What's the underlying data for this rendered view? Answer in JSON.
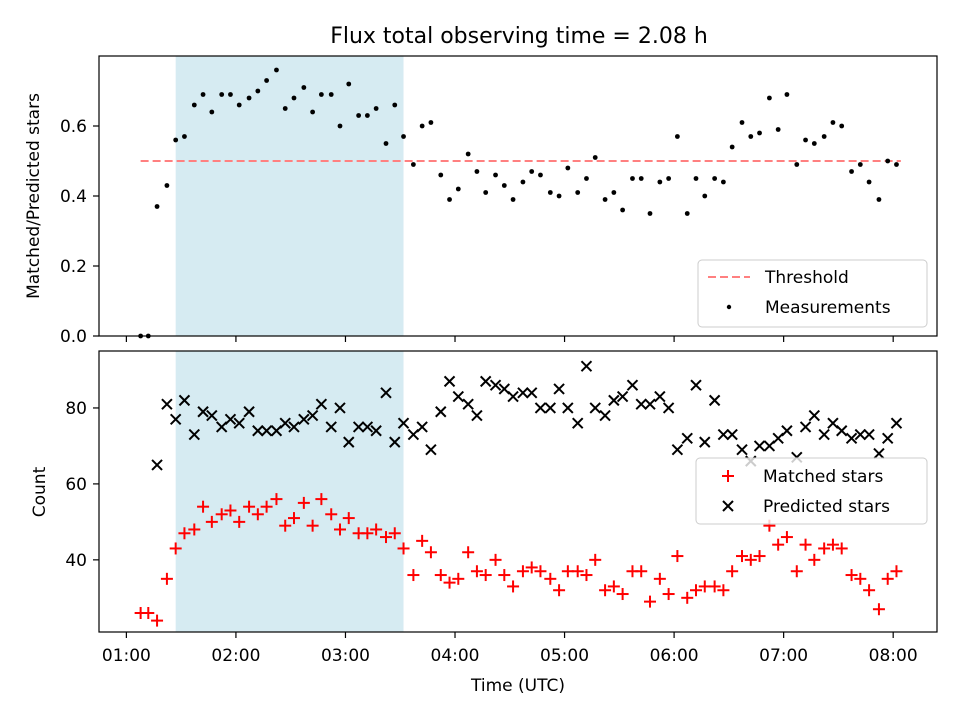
{
  "figure": {
    "title": "Flux total observing time = 2.08 h",
    "xlabel": "Time (UTC)",
    "x_ticks": [
      "01:00",
      "02:00",
      "03:00",
      "04:00",
      "05:00",
      "06:00",
      "07:00",
      "08:00"
    ],
    "colors": {
      "shade": "#add8e6",
      "threshold": "#ff8080",
      "measure": "#000000",
      "matched": "#ff0000",
      "predicted": "#000000"
    }
  },
  "chart_data": [
    {
      "type": "scatter",
      "ylabel": "Matched/Predicted stars",
      "xlim_hours": [
        0.75,
        8.4
      ],
      "ylim": [
        0,
        0.8
      ],
      "y_ticks": [
        "0.0",
        "0.2",
        "0.4",
        "0.6"
      ],
      "shaded_span_hours": [
        1.45,
        3.53
      ],
      "threshold": {
        "label": "Threshold",
        "value": 0.5,
        "x_range_hours": [
          1.13,
          8.07
        ]
      },
      "legend_labels": [
        "Threshold",
        "Measurements"
      ],
      "legend_position": "lower right",
      "series": [
        {
          "name": "Measurements",
          "x": [
            1.13,
            1.2,
            1.28,
            1.37,
            1.45,
            1.53,
            1.62,
            1.7,
            1.78,
            1.87,
            1.95,
            2.03,
            2.12,
            2.2,
            2.28,
            2.37,
            2.45,
            2.53,
            2.62,
            2.7,
            2.78,
            2.87,
            2.95,
            3.03,
            3.12,
            3.2,
            3.28,
            3.37,
            3.45,
            3.53,
            3.62,
            3.7,
            3.78,
            3.87,
            3.95,
            4.03,
            4.12,
            4.2,
            4.28,
            4.37,
            4.45,
            4.53,
            4.62,
            4.7,
            4.78,
            4.87,
            4.95,
            5.03,
            5.12,
            5.2,
            5.28,
            5.37,
            5.45,
            5.53,
            5.62,
            5.7,
            5.78,
            5.87,
            5.95,
            6.03,
            6.12,
            6.2,
            6.28,
            6.37,
            6.45,
            6.53,
            6.62,
            6.7,
            6.78,
            6.87,
            6.95,
            7.03,
            7.12,
            7.2,
            7.28,
            7.37,
            7.45,
            7.53,
            7.62,
            7.7,
            7.78,
            7.87,
            7.95,
            8.03
          ],
          "y": [
            0.0,
            0.0,
            0.37,
            0.43,
            0.56,
            0.57,
            0.66,
            0.69,
            0.64,
            0.69,
            0.69,
            0.66,
            0.68,
            0.7,
            0.73,
            0.76,
            0.65,
            0.68,
            0.71,
            0.64,
            0.69,
            0.69,
            0.6,
            0.72,
            0.63,
            0.63,
            0.65,
            0.55,
            0.66,
            0.57,
            0.49,
            0.6,
            0.61,
            0.46,
            0.39,
            0.42,
            0.52,
            0.47,
            0.41,
            0.46,
            0.43,
            0.39,
            0.44,
            0.47,
            0.46,
            0.41,
            0.4,
            0.48,
            0.41,
            0.45,
            0.51,
            0.39,
            0.41,
            0.36,
            0.45,
            0.45,
            0.35,
            0.44,
            0.45,
            0.57,
            0.35,
            0.45,
            0.4,
            0.45,
            0.44,
            0.54,
            0.61,
            0.57,
            0.58,
            0.68,
            0.59,
            0.69,
            0.49,
            0.56,
            0.55,
            0.57,
            0.61,
            0.6,
            0.47,
            0.49,
            0.44,
            0.39,
            0.5,
            0.49
          ]
        }
      ]
    },
    {
      "type": "scatter",
      "ylabel": "Count",
      "xlim_hours": [
        0.75,
        8.4
      ],
      "ylim": [
        21,
        95
      ],
      "y_ticks": [
        "40",
        "60",
        "80"
      ],
      "shaded_span_hours": [
        1.45,
        3.53
      ],
      "legend_labels": [
        "Matched stars",
        "Predicted stars"
      ],
      "legend_position": "center right",
      "series": [
        {
          "name": "Matched stars",
          "marker": "plus",
          "x": [
            1.13,
            1.2,
            1.28,
            1.37,
            1.45,
            1.53,
            1.62,
            1.7,
            1.78,
            1.87,
            1.95,
            2.03,
            2.12,
            2.2,
            2.28,
            2.37,
            2.45,
            2.53,
            2.62,
            2.7,
            2.78,
            2.87,
            2.95,
            3.03,
            3.12,
            3.2,
            3.28,
            3.37,
            3.45,
            3.53,
            3.62,
            3.7,
            3.78,
            3.87,
            3.95,
            4.03,
            4.12,
            4.2,
            4.28,
            4.37,
            4.45,
            4.53,
            4.62,
            4.7,
            4.78,
            4.87,
            4.95,
            5.03,
            5.12,
            5.2,
            5.28,
            5.37,
            5.45,
            5.53,
            5.62,
            5.7,
            5.78,
            5.87,
            5.95,
            6.03,
            6.12,
            6.2,
            6.28,
            6.37,
            6.45,
            6.53,
            6.62,
            6.7,
            6.78,
            6.87,
            6.95,
            7.03,
            7.12,
            7.2,
            7.28,
            7.37,
            7.45,
            7.53,
            7.62,
            7.7,
            7.78,
            7.87,
            7.95,
            8.03
          ],
          "y": [
            26,
            26,
            24,
            35,
            43,
            47,
            48,
            54,
            50,
            52,
            53,
            50,
            54,
            52,
            54,
            56,
            49,
            51,
            55,
            49,
            56,
            52,
            48,
            51,
            47,
            47,
            48,
            46,
            47,
            43,
            36,
            45,
            42,
            36,
            34,
            35,
            42,
            37,
            36,
            40,
            36,
            33,
            37,
            38,
            37,
            35,
            32,
            37,
            37,
            36,
            40,
            32,
            33,
            31,
            37,
            37,
            29,
            35,
            31,
            41,
            30,
            32,
            33,
            33,
            32,
            37,
            41,
            40,
            41,
            49,
            44,
            46,
            37,
            44,
            40,
            43,
            44,
            43,
            36,
            35,
            32,
            27,
            35,
            37
          ]
        },
        {
          "name": "Predicted stars",
          "marker": "x",
          "x": [
            1.13,
            1.2,
            1.28,
            1.37,
            1.45,
            1.53,
            1.62,
            1.7,
            1.78,
            1.87,
            1.95,
            2.03,
            2.12,
            2.2,
            2.28,
            2.37,
            2.45,
            2.53,
            2.62,
            2.7,
            2.78,
            2.87,
            2.95,
            3.03,
            3.12,
            3.2,
            3.28,
            3.37,
            3.45,
            3.53,
            3.62,
            3.7,
            3.78,
            3.87,
            3.95,
            4.03,
            4.12,
            4.2,
            4.28,
            4.37,
            4.45,
            4.53,
            4.62,
            4.7,
            4.78,
            4.87,
            4.95,
            5.03,
            5.12,
            5.2,
            5.28,
            5.37,
            5.45,
            5.53,
            5.62,
            5.7,
            5.78,
            5.87,
            5.95,
            6.03,
            6.12,
            6.2,
            6.28,
            6.37,
            6.45,
            6.53,
            6.62,
            6.7,
            6.78,
            6.87,
            6.95,
            7.03,
            7.12,
            7.2,
            7.28,
            7.37,
            7.45,
            7.53,
            7.62,
            7.7,
            7.78,
            7.87,
            7.95,
            8.03
          ],
          "y": [
            null,
            null,
            65,
            81,
            77,
            82,
            73,
            79,
            78,
            75,
            77,
            76,
            79,
            74,
            74,
            74,
            76,
            75,
            77,
            78,
            81,
            75,
            80,
            71,
            75,
            75,
            74,
            84,
            71,
            76,
            73,
            75,
            69,
            79,
            87,
            83,
            81,
            78,
            87,
            86,
            85,
            83,
            84,
            84,
            80,
            80,
            85,
            80,
            76,
            91,
            80,
            78,
            82,
            83,
            86,
            81,
            81,
            83,
            80,
            69,
            72,
            86,
            71,
            82,
            73,
            73,
            69,
            66,
            70,
            70,
            72,
            74,
            67,
            75,
            78,
            73,
            76,
            74,
            72,
            73,
            73,
            68,
            72,
            76
          ]
        }
      ]
    }
  ]
}
